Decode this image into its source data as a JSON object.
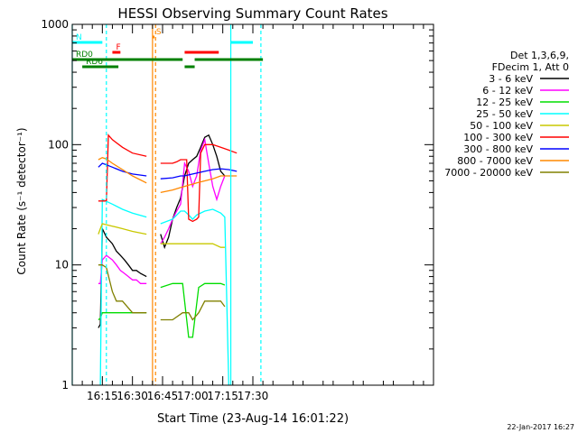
{
  "chart_data": {
    "type": "line",
    "title": "HESSI Observing Summary Count Rates",
    "ylabel": "Count Rate (s⁻¹ detector⁻¹)",
    "xlabel": "Start Time (23-Aug-14 16:01:22)",
    "footer": "22-Jan-2017 16:27",
    "y_scale": "log",
    "ylim": [
      1,
      1000
    ],
    "xlim_min": [
      0,
      180
    ],
    "x_unit": "minutes after 16:00 UT",
    "x_ticks": [
      {
        "label": "16:15",
        "m": 15
      },
      {
        "label": "16:30",
        "m": 30
      },
      {
        "label": "16:45",
        "m": 45
      },
      {
        "label": "17:00",
        "m": 60
      },
      {
        "label": "17:15",
        "m": 75
      },
      {
        "label": "17:30",
        "m": 90
      }
    ],
    "y_ticks": [
      {
        "label": "1",
        "v": 1
      },
      {
        "label": "10",
        "v": 10
      },
      {
        "label": "100",
        "v": 100
      },
      {
        "label": "1000",
        "v": 1000
      }
    ],
    "legend_header": [
      "Det 1,3,6,9,",
      "FDecim 1, Att 0"
    ],
    "legend_position": "right",
    "series": [
      {
        "name": "3 - 6 keV",
        "color": "#000000",
        "segments": [
          {
            "x": [
              13,
              14,
              15,
              17,
              20,
              22,
              24,
              26,
              28,
              30,
              32,
              34,
              37
            ],
            "y": [
              3,
              3.2,
              20,
              17,
              15,
              13,
              12,
              11,
              10,
              9,
              9,
              8.5,
              8
            ]
          },
          {
            "x": [
              44,
              46,
              48,
              50,
              52,
              54,
              56,
              58,
              60,
              62,
              64,
              66,
              68,
              70,
              72,
              74,
              76
            ],
            "y": [
              18,
              14,
              17,
              24,
              30,
              36,
              55,
              70,
              75,
              80,
              95,
              115,
              120,
              100,
              80,
              60,
              55
            ]
          }
        ]
      },
      {
        "name": "6 - 12 keV",
        "color": "#ff00ff",
        "segments": [
          {
            "x": [
              13,
              14,
              15,
              17,
              20,
              22,
              24,
              26,
              28,
              30,
              32,
              34,
              37
            ],
            "y": [
              7,
              7,
              11,
              12,
              11,
              10,
              9,
              8.5,
              8,
              7.5,
              7.5,
              7,
              7
            ]
          },
          {
            "x": [
              44,
              46,
              48,
              50,
              52,
              54,
              56,
              58,
              60,
              62,
              64,
              66,
              68,
              70,
              72,
              74,
              76
            ],
            "y": [
              15,
              17,
              20,
              24,
              28,
              32,
              70,
              60,
              45,
              55,
              90,
              110,
              70,
              45,
              35,
              45,
              55
            ]
          }
        ]
      },
      {
        "name": "12 - 25 keV",
        "color": "#00dd00",
        "segments": [
          {
            "x": [
              13,
              14,
              15,
              20,
              25,
              30,
              37
            ],
            "y": [
              3.5,
              3.6,
              4,
              4,
              4,
              4,
              4
            ]
          },
          {
            "x": [
              44,
              50,
              55,
              58,
              60,
              63,
              66,
              70,
              74,
              76
            ],
            "y": [
              6.5,
              7,
              7,
              2.5,
              2.5,
              6.5,
              7,
              7,
              7,
              6.8
            ]
          }
        ]
      },
      {
        "name": "25 - 50 keV",
        "color": "#00ffff",
        "segments": [
          {
            "x": [
              13,
              14,
              15,
              20,
              25,
              30,
              37
            ],
            "y": [
              0.9,
              1,
              35,
              32,
              29,
              27,
              25
            ]
          },
          {
            "x": [
              44,
              50,
              54,
              56,
              58,
              60,
              62,
              66,
              70,
              74,
              76,
              78,
              80
            ],
            "y": [
              22,
              24,
              28,
              28,
              26,
              24,
              26,
              28,
              29,
              27,
              25,
              1,
              0.9
            ]
          }
        ]
      },
      {
        "name": "50 - 100 keV",
        "color": "#c8c800",
        "segments": [
          {
            "x": [
              13,
              14,
              15,
              20,
              25,
              30,
              37
            ],
            "y": [
              18,
              20,
              22,
              21,
              20,
              19,
              18
            ]
          },
          {
            "x": [
              44,
              50,
              55,
              57,
              58,
              60,
              62,
              66,
              70,
              74,
              76
            ],
            "y": [
              15,
              15,
              15,
              15,
              15,
              15,
              15,
              15,
              15,
              14,
              14
            ]
          }
        ]
      },
      {
        "name": "100 - 300 keV",
        "color": "#ff0000",
        "segments": [
          {
            "x": [
              13,
              14,
              15,
              17,
              18,
              20,
              25,
              30,
              37
            ],
            "y": [
              34,
              34,
              34,
              34,
              120,
              110,
              95,
              85,
              80
            ]
          },
          {
            "x": [
              44,
              50,
              52,
              54,
              56,
              57,
              58,
              60,
              62,
              63,
              64,
              66,
              70,
              74,
              78,
              82
            ],
            "y": [
              70,
              70,
              72,
              75,
              75,
              75,
              24,
              23,
              24,
              25,
              85,
              100,
              100,
              95,
              90,
              85
            ]
          }
        ]
      },
      {
        "name": "300 - 800 keV",
        "color": "#0000ff",
        "segments": [
          {
            "x": [
              13,
              15,
              17,
              20,
              25,
              30,
              37
            ],
            "y": [
              65,
              70,
              68,
              65,
              60,
              57,
              55
            ]
          },
          {
            "x": [
              44,
              50,
              54,
              56,
              58,
              60,
              62,
              66,
              70,
              74,
              78,
              82
            ],
            "y": [
              52,
              53,
              55,
              55,
              56,
              57,
              58,
              60,
              62,
              63,
              62,
              60
            ]
          }
        ]
      },
      {
        "name": "800 - 7000 keV",
        "color": "#ff8800",
        "segments": [
          {
            "x": [
              13,
              15,
              17,
              20,
              25,
              30,
              37
            ],
            "y": [
              75,
              78,
              76,
              70,
              62,
              55,
              48
            ]
          },
          {
            "x": [
              44,
              50,
              54,
              56,
              58,
              60,
              62,
              66,
              70,
              74,
              78,
              82
            ],
            "y": [
              40,
              42,
              44,
              45,
              46,
              47,
              48,
              50,
              52,
              55,
              55,
              55
            ]
          }
        ]
      },
      {
        "name": "7000 - 20000 keV",
        "color": "#808000",
        "segments": [
          {
            "x": [
              13,
              15,
              17,
              20,
              22,
              25,
              30,
              37
            ],
            "y": [
              10,
              10,
              9.5,
              6,
              5,
              5,
              4,
              4
            ]
          },
          {
            "x": [
              44,
              50,
              55,
              58,
              60,
              63,
              66,
              70,
              74,
              76
            ],
            "y": [
              3.5,
              3.5,
              4,
              4,
              3.5,
              4,
              5,
              5,
              5,
              4.5
            ]
          }
        ]
      }
    ],
    "flags": [
      {
        "name": "N",
        "color": "#00ffff",
        "label": "N",
        "bars": [
          [
            0,
            15
          ],
          [
            79,
            90
          ]
        ]
      },
      {
        "name": "F",
        "color": "#ff0000",
        "label": "F",
        "bars": [
          [
            20,
            24
          ],
          [
            56,
            73
          ]
        ]
      },
      {
        "name": "S",
        "color": "#ff8800",
        "label": "S",
        "bars": [
          [
            40,
            41
          ]
        ]
      },
      {
        "name": "RD0",
        "color": "#008000",
        "label": "RD0",
        "bars": [
          [
            0,
            55
          ],
          [
            61,
            95
          ]
        ]
      },
      {
        "name": "RD6",
        "color": "#008000",
        "label": "RD6",
        "bars": [
          [
            5,
            23
          ],
          [
            56,
            61
          ]
        ]
      }
    ],
    "vertical_lines": [
      {
        "m": 0,
        "color": "#00ffff",
        "dashed": false
      },
      {
        "m": 17,
        "color": "#00ffff",
        "dashed": true
      },
      {
        "m": 40,
        "color": "#ff8800",
        "dashed": false
      },
      {
        "m": 41.5,
        "color": "#ff8800",
        "dashed": true
      },
      {
        "m": 79,
        "color": "#00ffff",
        "dashed": false
      },
      {
        "m": 94,
        "color": "#00ffff",
        "dashed": true
      }
    ]
  }
}
